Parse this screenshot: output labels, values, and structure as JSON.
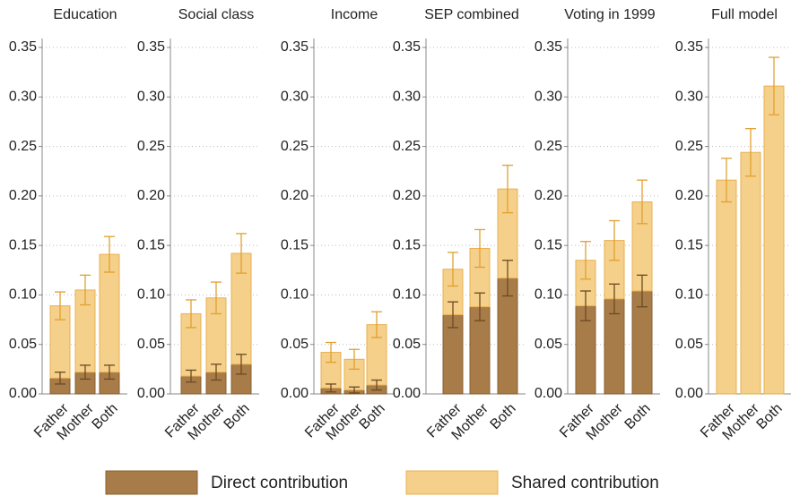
{
  "chart_data": [
    {
      "type": "bar",
      "stacked": true,
      "title": "Education",
      "categories": [
        "Father",
        "Mother",
        "Both"
      ],
      "series": [
        {
          "name": "Direct contribution",
          "color": "#a87c48",
          "values": [
            0.016,
            0.022,
            0.022
          ],
          "errors": [
            0.006,
            0.007,
            0.007
          ]
        },
        {
          "name": "Shared contribution",
          "color": "#f5d08a",
          "values": [
            0.073,
            0.083,
            0.119
          ],
          "errors": [
            0.014,
            0.015,
            0.018
          ]
        }
      ],
      "ylim": [
        0,
        0.35
      ],
      "yticks": [
        {
          "value": 0,
          "label": "0.00"
        },
        {
          "value": 0.05,
          "label": "0.05"
        },
        {
          "value": 0.1,
          "label": "0.10"
        },
        {
          "value": 0.15,
          "label": "0.15"
        },
        {
          "value": 0.2,
          "label": "0.20"
        },
        {
          "value": 0.25,
          "label": "0.25"
        },
        {
          "value": 0.3,
          "label": "0.30"
        },
        {
          "value": 0.35,
          "label": "0.35"
        }
      ],
      "grid": true
    },
    {
      "type": "bar",
      "stacked": true,
      "title": "Social class",
      "categories": [
        "Father",
        "Mother",
        "Both"
      ],
      "series": [
        {
          "name": "Direct contribution",
          "color": "#a87c48",
          "values": [
            0.018,
            0.022,
            0.03
          ],
          "errors": [
            0.006,
            0.008,
            0.01
          ]
        },
        {
          "name": "Shared contribution",
          "color": "#f5d08a",
          "values": [
            0.063,
            0.075,
            0.112
          ],
          "errors": [
            0.014,
            0.016,
            0.02
          ]
        }
      ],
      "ylim": [
        0,
        0.35
      ],
      "yticks": [
        {
          "value": 0,
          "label": "0.00"
        },
        {
          "value": 0.05,
          "label": "0.05"
        },
        {
          "value": 0.1,
          "label": "0.10"
        },
        {
          "value": 0.15,
          "label": "0.15"
        },
        {
          "value": 0.2,
          "label": "0.20"
        },
        {
          "value": 0.25,
          "label": "0.25"
        },
        {
          "value": 0.3,
          "label": "0.30"
        },
        {
          "value": 0.35,
          "label": "0.35"
        }
      ],
      "grid": true
    },
    {
      "type": "bar",
      "stacked": true,
      "title": "Income",
      "categories": [
        "Father",
        "Mother",
        "Both"
      ],
      "series": [
        {
          "name": "Direct contribution",
          "color": "#a87c48",
          "values": [
            0.006,
            0.004,
            0.009
          ],
          "errors": [
            0.004,
            0.003,
            0.005
          ]
        },
        {
          "name": "Shared contribution",
          "color": "#f5d08a",
          "values": [
            0.036,
            0.031,
            0.061
          ],
          "errors": [
            0.01,
            0.01,
            0.013
          ]
        }
      ],
      "ylim": [
        0,
        0.35
      ],
      "yticks": [
        {
          "value": 0,
          "label": "0.00"
        },
        {
          "value": 0.05,
          "label": "0.05"
        },
        {
          "value": 0.1,
          "label": "0.10"
        },
        {
          "value": 0.15,
          "label": "0.15"
        },
        {
          "value": 0.2,
          "label": "0.20"
        },
        {
          "value": 0.25,
          "label": "0.25"
        },
        {
          "value": 0.3,
          "label": "0.30"
        },
        {
          "value": 0.35,
          "label": "0.35"
        }
      ],
      "grid": true
    },
    {
      "type": "bar",
      "stacked": true,
      "title": "SEP combined",
      "categories": [
        "Father",
        "Mother",
        "Both"
      ],
      "series": [
        {
          "name": "Direct contribution",
          "color": "#a87c48",
          "values": [
            0.08,
            0.088,
            0.117
          ],
          "errors": [
            0.013,
            0.014,
            0.018
          ]
        },
        {
          "name": "Shared contribution",
          "color": "#f5d08a",
          "values": [
            0.046,
            0.059,
            0.09
          ],
          "errors": [
            0.017,
            0.019,
            0.024
          ]
        }
      ],
      "ylim": [
        0,
        0.35
      ],
      "yticks": [
        {
          "value": 0,
          "label": "0.00"
        },
        {
          "value": 0.05,
          "label": "0.05"
        },
        {
          "value": 0.1,
          "label": "0.10"
        },
        {
          "value": 0.15,
          "label": "0.15"
        },
        {
          "value": 0.2,
          "label": "0.20"
        },
        {
          "value": 0.25,
          "label": "0.25"
        },
        {
          "value": 0.3,
          "label": "0.30"
        },
        {
          "value": 0.35,
          "label": "0.35"
        }
      ],
      "grid": true
    },
    {
      "type": "bar",
      "stacked": true,
      "title": "Voting in 1999",
      "categories": [
        "Father",
        "Mother",
        "Both"
      ],
      "series": [
        {
          "name": "Direct contribution",
          "color": "#a87c48",
          "values": [
            0.089,
            0.096,
            0.104
          ],
          "errors": [
            0.015,
            0.015,
            0.016
          ]
        },
        {
          "name": "Shared contribution",
          "color": "#f5d08a",
          "values": [
            0.046,
            0.059,
            0.09
          ],
          "errors": [
            0.019,
            0.02,
            0.022
          ]
        }
      ],
      "ylim": [
        0,
        0.35
      ],
      "yticks": [
        {
          "value": 0,
          "label": "0.00"
        },
        {
          "value": 0.05,
          "label": "0.05"
        },
        {
          "value": 0.1,
          "label": "0.10"
        },
        {
          "value": 0.15,
          "label": "0.15"
        },
        {
          "value": 0.2,
          "label": "0.20"
        },
        {
          "value": 0.25,
          "label": "0.25"
        },
        {
          "value": 0.3,
          "label": "0.30"
        },
        {
          "value": 0.35,
          "label": "0.35"
        }
      ],
      "grid": true
    },
    {
      "type": "bar",
      "stacked": true,
      "title": "Full model",
      "categories": [
        "Father",
        "Mother",
        "Both"
      ],
      "series": [
        {
          "name": "Shared contribution",
          "color": "#f5d08a",
          "values": [
            0.216,
            0.244,
            0.311
          ],
          "errors": [
            0.022,
            0.024,
            0.029
          ]
        }
      ],
      "ylim": [
        0,
        0.35
      ],
      "yticks": [
        {
          "value": 0,
          "label": "0.00"
        },
        {
          "value": 0.05,
          "label": "0.05"
        },
        {
          "value": 0.1,
          "label": "0.10"
        },
        {
          "value": 0.15,
          "label": "0.15"
        },
        {
          "value": 0.2,
          "label": "0.20"
        },
        {
          "value": 0.25,
          "label": "0.25"
        },
        {
          "value": 0.3,
          "label": "0.30"
        },
        {
          "value": 0.35,
          "label": "0.35"
        }
      ],
      "grid": true
    }
  ]
}
